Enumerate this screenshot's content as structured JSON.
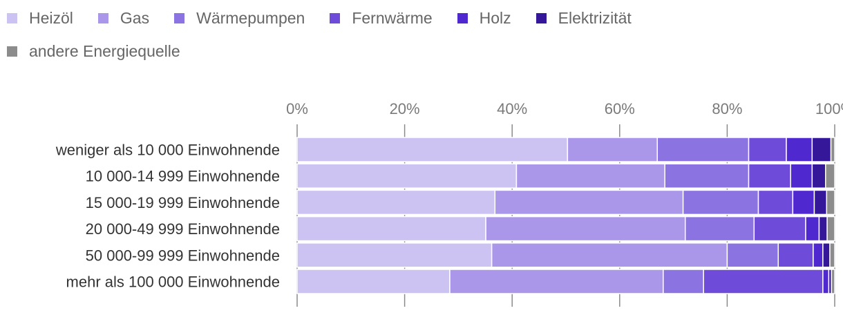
{
  "chart_data": {
    "type": "bar",
    "orientation": "horizontal",
    "stacked": "percent",
    "categories": [
      "weniger als 10 000 Einwohnende",
      "10 000-14 999 Einwohnende",
      "15 000-19 999 Einwohnende",
      "20 000-49 999 Einwohnende",
      "50 000-99 999 Einwohnende",
      "mehr als 100 000 Einwohnende"
    ],
    "series": [
      {
        "name": "Heizöl",
        "color": "#cdc3f3",
        "values": [
          50.3,
          40.8,
          36.8,
          35.1,
          36.2,
          28.4
        ]
      },
      {
        "name": "Gas",
        "color": "#ab97ea",
        "values": [
          16.7,
          27.6,
          35.0,
          37.1,
          43.8,
          39.7
        ]
      },
      {
        "name": "Wärmepumpen",
        "color": "#8c73e2",
        "values": [
          17.0,
          15.6,
          14.0,
          12.8,
          9.5,
          7.5
        ]
      },
      {
        "name": "Fernwärme",
        "color": "#6e4cd9",
        "values": [
          7.0,
          7.8,
          6.4,
          9.6,
          6.5,
          22.2
        ]
      },
      {
        "name": "Holz",
        "color": "#5028d0",
        "values": [
          4.8,
          4.0,
          4.0,
          2.5,
          1.8,
          1.1
        ]
      },
      {
        "name": "Elektrizität",
        "color": "#35189a",
        "values": [
          3.5,
          2.5,
          2.3,
          1.5,
          1.3,
          0.5
        ]
      },
      {
        "name": "andere Energiequelle",
        "color": "#8c8c8c",
        "values": [
          0.7,
          1.7,
          1.5,
          1.4,
          0.9,
          0.6
        ]
      }
    ],
    "xlim": [
      0,
      100
    ],
    "ticks": [
      0,
      20,
      40,
      60,
      80,
      100
    ],
    "tick_labels": [
      "0%",
      "20%",
      "40%",
      "60%",
      "80%",
      "100%"
    ],
    "legend_position": "top-left",
    "grid": true
  }
}
